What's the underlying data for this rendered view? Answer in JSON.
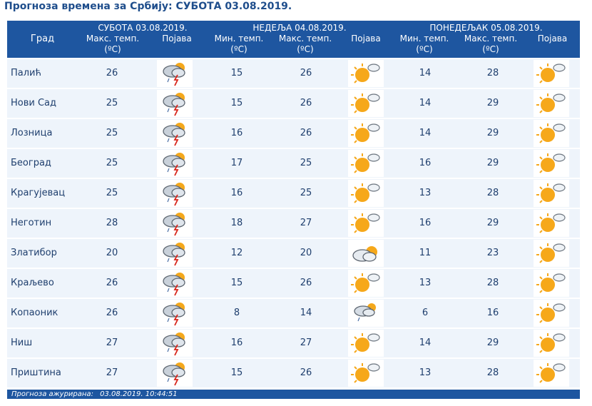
{
  "title": "Прогноза времена за Србију: СУБОТА  03.08.2019.",
  "header": {
    "city": "Град",
    "days": [
      {
        "name": "СУБОТА  03.08.2019."
      },
      {
        "name": "НЕДЕЉА  04.08.2019."
      },
      {
        "name": "ПОНЕДЕЉАК  05.08.2019."
      }
    ],
    "max_line1": "Макс. темп.",
    "min_line1": "Мин. темп.",
    "unit": "(ºC)",
    "phenomenon": "Појава"
  },
  "rows": [
    {
      "city": "Палић",
      "d1max": "26",
      "d1icon": "storm-icon",
      "d2min": "15",
      "d2max": "26",
      "d2icon": "sun-cloud-icon",
      "d3min": "14",
      "d3max": "28",
      "d3icon": "sun-cloud-icon"
    },
    {
      "city": "Нови Сад",
      "d1max": "25",
      "d1icon": "storm-icon",
      "d2min": "15",
      "d2max": "26",
      "d2icon": "sun-cloud-icon",
      "d3min": "14",
      "d3max": "29",
      "d3icon": "sun-cloud-icon"
    },
    {
      "city": "Лозница",
      "d1max": "25",
      "d1icon": "storm-icon",
      "d2min": "16",
      "d2max": "26",
      "d2icon": "sun-cloud-icon",
      "d3min": "14",
      "d3max": "29",
      "d3icon": "sun-cloud-icon"
    },
    {
      "city": "Београд",
      "d1max": "25",
      "d1icon": "storm-icon",
      "d2min": "17",
      "d2max": "25",
      "d2icon": "sun-cloud-icon",
      "d3min": "16",
      "d3max": "29",
      "d3icon": "sun-cloud-icon"
    },
    {
      "city": "Крагујевац",
      "d1max": "25",
      "d1icon": "storm-icon",
      "d2min": "16",
      "d2max": "25",
      "d2icon": "sun-cloud-icon",
      "d3min": "13",
      "d3max": "28",
      "d3icon": "sun-cloud-icon"
    },
    {
      "city": "Неготин",
      "d1max": "28",
      "d1icon": "storm-icon",
      "d2min": "18",
      "d2max": "27",
      "d2icon": "sun-cloud-icon",
      "d3min": "16",
      "d3max": "29",
      "d3icon": "sun-cloud-icon"
    },
    {
      "city": "Златибор",
      "d1max": "20",
      "d1icon": "storm-icon",
      "d2min": "12",
      "d2max": "20",
      "d2icon": "cloud-sun-icon",
      "d3min": "11",
      "d3max": "23",
      "d3icon": "sun-cloud-icon"
    },
    {
      "city": "Краљево",
      "d1max": "26",
      "d1icon": "storm-icon",
      "d2min": "15",
      "d2max": "26",
      "d2icon": "sun-cloud-icon",
      "d3min": "13",
      "d3max": "28",
      "d3icon": "sun-cloud-icon"
    },
    {
      "city": "Копаоник",
      "d1max": "26",
      "d1icon": "storm-icon",
      "d2min": "8",
      "d2max": "14",
      "d2icon": "cloud-shower-icon",
      "d3min": "6",
      "d3max": "16",
      "d3icon": "sun-cloud-icon"
    },
    {
      "city": "Ниш",
      "d1max": "27",
      "d1icon": "storm-icon",
      "d2min": "16",
      "d2max": "27",
      "d2icon": "sun-cloud-icon",
      "d3min": "14",
      "d3max": "29",
      "d3icon": "sun-cloud-icon"
    },
    {
      "city": "Приштина",
      "d1max": "27",
      "d1icon": "storm-icon",
      "d2min": "15",
      "d2max": "26",
      "d2icon": "sun-cloud-icon",
      "d3min": "13",
      "d3max": "28",
      "d3icon": "sun-cloud-icon"
    }
  ],
  "footer": {
    "label": "Прогноза ажурирана:",
    "timestamp": "03.08.2019. 10:44:51"
  },
  "colors": {
    "header_bg": "#1e56a0",
    "row_bg": "#eef4fb",
    "title": "#1f4e8c",
    "text": "#1f3f6e"
  }
}
